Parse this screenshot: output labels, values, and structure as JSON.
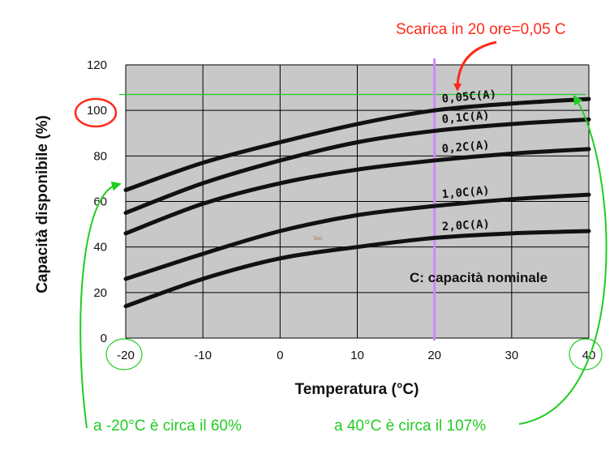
{
  "chart_data": {
    "type": "line",
    "xlabel": "Temperatura (°C)",
    "ylabel": "Capacità disponibile (%)",
    "xlim": [
      -20,
      40
    ],
    "ylim": [
      0,
      120
    ],
    "x_ticks": [
      "-20",
      "-10",
      "0",
      "10",
      "20",
      "30",
      "40"
    ],
    "y_ticks": [
      "0",
      "20",
      "40",
      "60",
      "80",
      "100",
      "120"
    ],
    "grid": true,
    "x": [
      -20,
      -10,
      0,
      10,
      20,
      30,
      40
    ],
    "series": [
      {
        "name": "0,05C(A)",
        "values": [
          65,
          77,
          86,
          94,
          100,
          103,
          105
        ]
      },
      {
        "name": "0,1C(A)",
        "values": [
          55,
          68,
          78,
          86,
          91,
          94,
          96
        ]
      },
      {
        "name": "0,2C(A)",
        "values": [
          46,
          59,
          68,
          74,
          78,
          81,
          83
        ]
      },
      {
        "name": "1,0C(A)",
        "values": [
          26,
          37,
          47,
          54,
          58,
          61,
          63
        ]
      },
      {
        "name": "2,0C(A)",
        "values": [
          14,
          26,
          35,
          40,
          44,
          46,
          47
        ]
      }
    ],
    "annotations": {
      "note_red": "Scarica in 20 ore=0,05 C",
      "note_left": "a -20°C è circa il 60%",
      "note_right": "a 40°C è circa il 107%",
      "nominal": "C: capacità nominale",
      "center_text": "Text"
    },
    "reference_lines": {
      "horizontal_y": 107,
      "vertical_x": 20
    },
    "colors": {
      "plot_bg": "#c8c8c8",
      "curve": "#111111",
      "red": "#ff2a1a",
      "green": "#22cc22",
      "violet": "#cc88ff"
    }
  }
}
